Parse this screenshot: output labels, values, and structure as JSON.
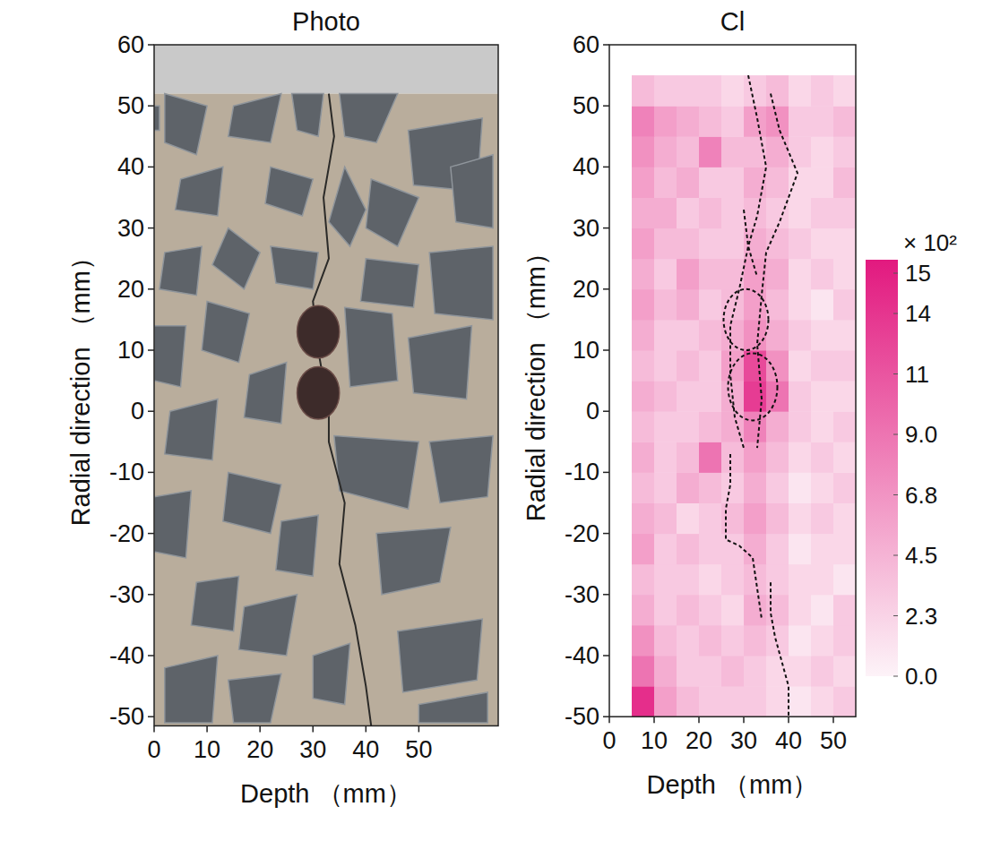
{
  "chart_data": [
    {
      "type": "image",
      "title": "Photo",
      "x_label": "Depth （mm）",
      "y_label": "Radial direction （mm）",
      "xlim": [
        0,
        65
      ],
      "ylim": [
        -51.5,
        60
      ],
      "xticks": [
        0,
        10,
        20,
        30,
        40,
        50
      ],
      "yticks": [
        -50,
        -40,
        -30,
        -20,
        -10,
        0,
        10,
        20,
        30,
        40,
        50,
        60
      ]
    },
    {
      "type": "heatmap",
      "title": "Cl",
      "x_label": "Depth （mm）",
      "y_label": "Radial direction （mm）",
      "xlim": [
        0,
        55
      ],
      "ylim": [
        -50,
        60
      ],
      "xticks": [
        0,
        10,
        20,
        30,
        40,
        50
      ],
      "yticks": [
        -50,
        -40,
        -30,
        -20,
        -10,
        0,
        10,
        20,
        30,
        40,
        50,
        60
      ],
      "x_edges": [
        5,
        10,
        15,
        20,
        25,
        30,
        35,
        40,
        45,
        50,
        55
      ],
      "y_edges": [
        -50,
        -45,
        -40,
        -35,
        -30,
        -25,
        -20,
        -15,
        -10,
        -5,
        0,
        5,
        10,
        15,
        20,
        25,
        30,
        35,
        40,
        45,
        50,
        55
      ],
      "cells": [
        [
          14,
          6,
          4,
          3,
          3,
          3,
          2,
          1,
          2,
          3
        ],
        [
          9,
          5,
          3,
          3,
          4,
          3,
          2,
          2,
          3,
          2
        ],
        [
          7,
          4,
          3,
          4,
          3,
          4,
          3,
          1,
          2,
          3
        ],
        [
          5,
          3,
          4,
          3,
          2,
          5,
          4,
          2,
          1,
          3
        ],
        [
          4,
          3,
          3,
          2,
          3,
          4,
          3,
          2,
          2,
          1
        ],
        [
          6,
          3,
          4,
          3,
          3,
          5,
          3,
          1,
          2,
          2
        ],
        [
          5,
          4,
          2,
          3,
          4,
          6,
          4,
          2,
          3,
          2
        ],
        [
          4,
          3,
          5,
          4,
          3,
          5,
          3,
          1,
          2,
          3
        ],
        [
          5,
          3,
          4,
          9,
          4,
          6,
          4,
          2,
          3,
          2
        ],
        [
          4,
          3,
          3,
          4,
          5,
          8,
          5,
          3,
          2,
          3
        ],
        [
          5,
          4,
          3,
          3,
          5,
          13,
          9,
          3,
          2,
          2
        ],
        [
          4,
          3,
          4,
          3,
          6,
          12,
          7,
          2,
          3,
          3
        ],
        [
          5,
          3,
          3,
          4,
          5,
          7,
          5,
          3,
          2,
          2
        ],
        [
          6,
          4,
          5,
          3,
          4,
          6,
          4,
          2,
          1,
          3
        ],
        [
          5,
          3,
          6,
          4,
          4,
          6,
          5,
          2,
          3,
          2
        ],
        [
          6,
          4,
          4,
          3,
          3,
          5,
          4,
          3,
          2,
          2
        ],
        [
          5,
          5,
          3,
          4,
          3,
          4,
          3,
          2,
          3,
          3
        ],
        [
          6,
          4,
          5,
          3,
          3,
          5,
          4,
          2,
          2,
          4
        ],
        [
          7,
          5,
          4,
          8,
          4,
          4,
          5,
          3,
          2,
          3
        ],
        [
          8,
          6,
          5,
          4,
          3,
          6,
          7,
          3,
          3,
          4
        ],
        [
          4,
          3,
          3,
          3,
          2,
          3,
          4,
          2,
          3,
          2
        ]
      ],
      "colors": [
        "#fdf3f8",
        "#e2197f"
      ],
      "colorbar": {
        "title": "× 10²",
        "range": [
          0,
          15.5
        ],
        "ticks": [
          {
            "value": 0,
            "label": "0.0"
          },
          {
            "value": 2.25,
            "label": "2.3"
          },
          {
            "value": 4.5,
            "label": "4.5"
          },
          {
            "value": 6.75,
            "label": "6.8"
          },
          {
            "value": 9,
            "label": "9.0"
          },
          {
            "value": 11.25,
            "label": "11"
          },
          {
            "value": 13.5,
            "label": "14"
          },
          15
        ]
      },
      "crack_lines": [
        {
          "depth": [
            31,
            33,
            35,
            33,
            31,
            29,
            27,
            27,
            28,
            30
          ],
          "radial": [
            55,
            48,
            40,
            32,
            27,
            20,
            14,
            6,
            -1,
            -6
          ]
        },
        {
          "depth": [
            36,
            38,
            42,
            38,
            35,
            34,
            33,
            34,
            33
          ],
          "radial": [
            52,
            46,
            39,
            31,
            26,
            19,
            11,
            2,
            -6
          ]
        },
        {
          "depth": [
            30,
            31,
            33
          ],
          "radial": [
            33,
            27,
            22
          ]
        },
        {
          "depth": [
            27,
            27,
            26,
            26,
            29,
            32,
            34
          ],
          "radial": [
            -7,
            -12,
            -16,
            -21,
            -22,
            -24,
            -34
          ]
        },
        {
          "depth": [
            36,
            36,
            37,
            40,
            40
          ],
          "radial": [
            -28,
            -33,
            -37,
            -45,
            -51
          ]
        }
      ],
      "circles": [
        {
          "depth": 30.5,
          "radial": 15,
          "r": 5
        },
        {
          "depth": 32,
          "radial": 4,
          "r": 5.5
        }
      ]
    }
  ]
}
